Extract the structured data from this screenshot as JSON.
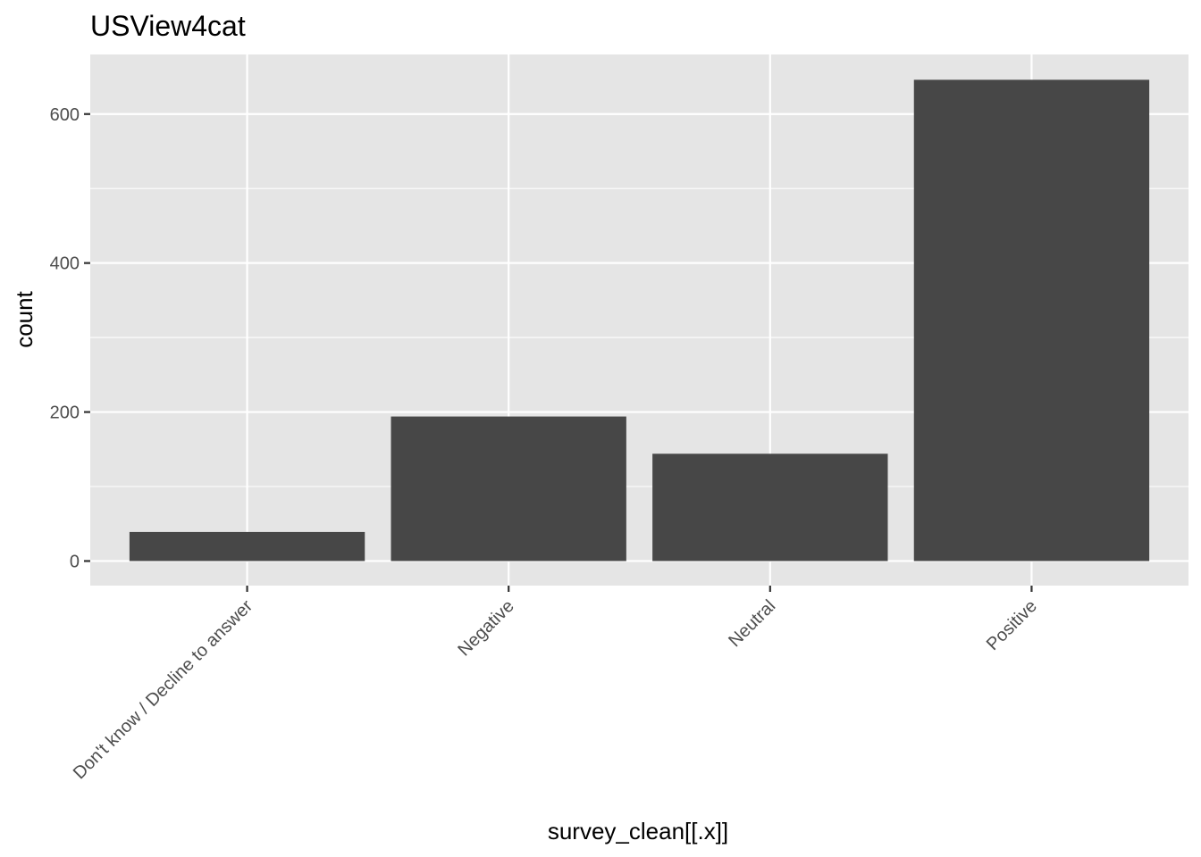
{
  "chart_data": {
    "type": "bar",
    "title": "USView4cat",
    "xlabel": "survey_clean[[.x]]",
    "ylabel": "count",
    "categories": [
      "Don't know / Decline to answer",
      "Negative",
      "Neutral",
      "Positive"
    ],
    "values": [
      39,
      194,
      144,
      646
    ],
    "ylim": [
      -33,
      680
    ],
    "yticks": [
      0,
      200,
      400,
      600
    ],
    "ytick_labels": [
      "0",
      "200",
      "400",
      "600"
    ],
    "grid": true,
    "colors": {
      "panel": "#e5e5e5",
      "bar": "#474747",
      "grid": "#ffffff",
      "tick": "#333333"
    }
  }
}
